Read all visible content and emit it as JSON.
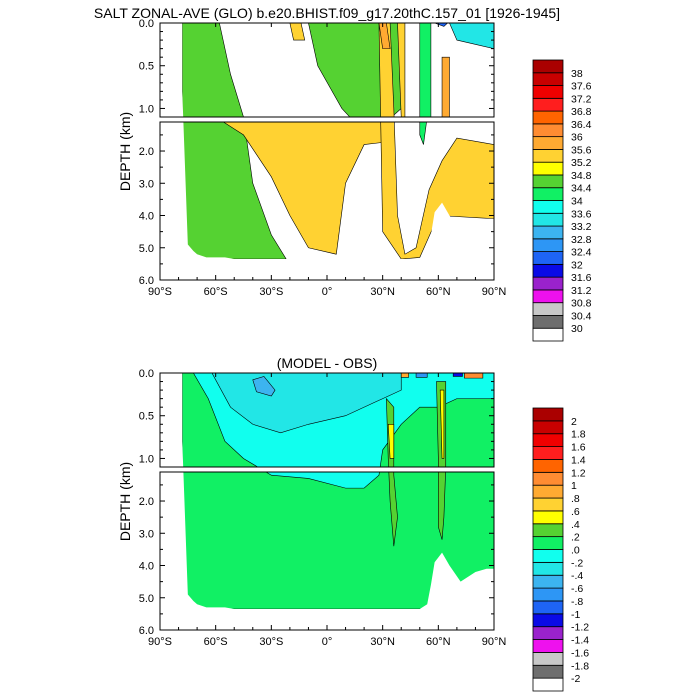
{
  "chart_data": [
    {
      "type": "heatmap",
      "title": "SALT ZONAL-AVE (GLO) b.e20.BHIST.f09_g17.20thC.157_01 [1926-1945]",
      "ylabel": "DEPTH (km)",
      "xlim": [
        -90,
        90
      ],
      "ylim_upper": [
        0,
        1.1
      ],
      "ylim_lower": [
        1.1,
        6.0
      ],
      "x_ticks": [
        "90°S",
        "60°S",
        "30°S",
        "0°",
        "30°N",
        "60°N",
        "90°N"
      ],
      "y_ticks_upper": [
        "0.0",
        "0.5",
        "1.0"
      ],
      "y_ticks_lower": [
        "2.0",
        "3.0",
        "4.0",
        "5.0",
        "6.0"
      ],
      "colorbar_labels": [
        "30",
        "30.4",
        "30.8",
        "31.2",
        "31.6",
        "32",
        "32.4",
        "32.8",
        "33.2",
        "33.6",
        "34",
        "34.4",
        "34.8",
        "35.2",
        "35.6",
        "36",
        "36.4",
        "36.8",
        "37.2",
        "37.6",
        "38"
      ],
      "colorbar_colors": [
        "#ffffff",
        "#6e6e6e",
        "#c8c8c8",
        "#ee11ee",
        "#9a22cc",
        "#0a0ae6",
        "#1e64f5",
        "#2d96f5",
        "#3cb4f0",
        "#22e6e6",
        "#11ffee",
        "#11f064",
        "#55d232",
        "#ffff00",
        "#ffd232",
        "#ffaa32",
        "#ff8c32",
        "#ff6400",
        "#ff1e1e",
        "#f00000",
        "#c80000",
        "#aa0000"
      ],
      "bottom_depth_km": [
        [
          -78,
          0.8
        ],
        [
          -75,
          4.9
        ],
        [
          -72,
          5.1
        ],
        [
          -70,
          5.2
        ],
        [
          -65,
          5.3
        ],
        [
          -60,
          5.3
        ],
        [
          -55,
          5.3
        ],
        [
          -50,
          5.35
        ],
        [
          -40,
          5.35
        ],
        [
          -20,
          5.35
        ],
        [
          0,
          5.35
        ],
        [
          20,
          5.35
        ],
        [
          40,
          5.35
        ],
        [
          50,
          5.35
        ],
        [
          54,
          5.2
        ],
        [
          56,
          4.6
        ],
        [
          58,
          3.9
        ],
        [
          62,
          3.6
        ],
        [
          66,
          4.0
        ],
        [
          72,
          4.5
        ],
        [
          80,
          4.2
        ],
        [
          86,
          4.1
        ],
        [
          90,
          4.1
        ]
      ],
      "regions": [
        {
          "value": 34.6,
          "points": [
            [
              -78,
              0
            ],
            [
              -58,
              0
            ],
            [
              -52,
              0.6
            ],
            [
              -45,
              1.1
            ],
            [
              -40,
              3.0
            ],
            [
              -30,
              4.6
            ],
            [
              -22,
              5.35
            ],
            [
              -78,
              5.35
            ]
          ]
        },
        {
          "value": 34.6,
          "points": [
            [
              -28,
              0
            ],
            [
              -10,
              0
            ],
            [
              -5,
              0.5
            ],
            [
              8,
              1.0
            ],
            [
              18,
              1.3
            ],
            [
              28,
              1.3
            ],
            [
              40,
              1.0
            ],
            [
              40,
              0
            ],
            [
              -28,
              0
            ]
          ]
        },
        {
          "value": 35.4,
          "points": [
            [
              -60,
              1.1
            ],
            [
              -45,
              1.5
            ],
            [
              -30,
              2.8
            ],
            [
              -20,
              4.0
            ],
            [
              -10,
              5.0
            ],
            [
              5,
              5.2
            ],
            [
              10,
              3.0
            ],
            [
              20,
              1.8
            ],
            [
              35,
              1.7
            ],
            [
              36,
              1.1
            ]
          ]
        },
        {
          "value": 35.4,
          "points": [
            [
              28,
              0
            ],
            [
              34,
              0
            ],
            [
              36,
              1.0
            ],
            [
              38,
              4.0
            ],
            [
              42,
              5.2
            ],
            [
              48,
              5.0
            ],
            [
              55,
              3.2
            ],
            [
              62,
              2.3
            ],
            [
              70,
              1.6
            ],
            [
              80,
              1.7
            ],
            [
              90,
              1.8
            ],
            [
              90,
              4.1
            ],
            [
              60,
              4.0
            ],
            [
              50,
              5.3
            ],
            [
              40,
              5.35
            ],
            [
              30,
              4.5
            ],
            [
              28,
              0
            ]
          ]
        },
        {
          "value": 35.4,
          "points": [
            [
              -20,
              0
            ],
            [
              -14,
              0
            ],
            [
              -12,
              0.2
            ],
            [
              -18,
              0.2
            ]
          ]
        },
        {
          "value": 35.8,
          "points": [
            [
              28,
              0
            ],
            [
              32,
              0
            ],
            [
              34,
              0.3
            ],
            [
              30,
              0.3
            ]
          ]
        },
        {
          "value": 34.0,
          "points": [
            [
              50,
              0
            ],
            [
              56,
              0
            ],
            [
              56,
              1.1
            ],
            [
              54,
              1.1
            ],
            [
              52,
              1.8
            ],
            [
              50,
              1.5
            ]
          ]
        },
        {
          "value": 35.8,
          "points": [
            [
              62,
              0.4
            ],
            [
              66,
              0.4
            ],
            [
              66,
              1.1
            ],
            [
              64,
              1.1
            ],
            [
              62,
              1.1
            ]
          ]
        },
        {
          "value": 35.4,
          "points": [
            [
              38,
              0
            ],
            [
              42,
              0
            ],
            [
              42,
              1.1
            ],
            [
              40,
              1.1
            ]
          ]
        },
        {
          "value": 33.4,
          "points": [
            [
              66,
              0
            ],
            [
              90,
              0
            ],
            [
              90,
              0.3
            ],
            [
              70,
              0.2
            ]
          ]
        },
        {
          "value": 32.0,
          "points": [
            [
              58,
              0
            ],
            [
              65,
              0
            ],
            [
              63,
              0.04
            ]
          ]
        }
      ]
    },
    {
      "type": "heatmap",
      "title": "(MODEL - OBS)",
      "ylabel": "DEPTH (km)",
      "xlim": [
        -90,
        90
      ],
      "ylim_upper": [
        0,
        1.1
      ],
      "ylim_lower": [
        1.1,
        6.0
      ],
      "x_ticks": [
        "90°S",
        "60°S",
        "30°S",
        "0°",
        "30°N",
        "60°N",
        "90°N"
      ],
      "y_ticks_upper": [
        "0.0",
        "0.5",
        "1.0"
      ],
      "y_ticks_lower": [
        "2.0",
        "3.0",
        "4.0",
        "5.0",
        "6.0"
      ],
      "colorbar_labels": [
        "-2",
        "-1.8",
        "-1.6",
        "-1.4",
        "-1.2",
        "-1",
        "-.8",
        "-.6",
        "-.4",
        "-.2",
        ".0",
        ".2",
        ".4",
        ".6",
        ".8",
        "1",
        "1.2",
        "1.4",
        "1.6",
        "1.8",
        "2"
      ],
      "colorbar_colors": [
        "#ffffff",
        "#6e6e6e",
        "#c8c8c8",
        "#ee11ee",
        "#9a22cc",
        "#0a0ae6",
        "#1e64f5",
        "#2d96f5",
        "#3cb4f0",
        "#22e6e6",
        "#11ffee",
        "#11f064",
        "#55d232",
        "#ffff00",
        "#ffd232",
        "#ffaa32",
        "#ff8c32",
        "#ff6400",
        "#ff1e1e",
        "#f00000",
        "#c80000",
        "#aa0000"
      ],
      "bottom_depth_km": [
        [
          -78,
          0.8
        ],
        [
          -75,
          4.9
        ],
        [
          -72,
          5.1
        ],
        [
          -70,
          5.2
        ],
        [
          -65,
          5.3
        ],
        [
          -60,
          5.3
        ],
        [
          -55,
          5.3
        ],
        [
          -50,
          5.35
        ],
        [
          -40,
          5.35
        ],
        [
          -20,
          5.35
        ],
        [
          0,
          5.35
        ],
        [
          20,
          5.35
        ],
        [
          40,
          5.35
        ],
        [
          50,
          5.35
        ],
        [
          54,
          5.2
        ],
        [
          56,
          4.6
        ],
        [
          58,
          3.9
        ],
        [
          62,
          3.6
        ],
        [
          66,
          4.0
        ],
        [
          72,
          4.5
        ],
        [
          80,
          4.2
        ],
        [
          86,
          4.1
        ],
        [
          90,
          4.1
        ]
      ],
      "regions": [
        {
          "value": 0.1,
          "points": [
            [
              -78,
              0
            ],
            [
              -78,
              5.35
            ],
            [
              90,
              5.35
            ],
            [
              90,
              0
            ]
          ]
        },
        {
          "value": -0.1,
          "points": [
            [
              -72,
              0
            ],
            [
              -64,
              0.3
            ],
            [
              -55,
              0.8
            ],
            [
              -45,
              1.0
            ],
            [
              -30,
              1.2
            ],
            [
              -10,
              1.3
            ],
            [
              10,
              1.6
            ],
            [
              20,
              1.6
            ],
            [
              28,
              1.2
            ],
            [
              30,
              0.9
            ],
            [
              40,
              0.6
            ],
            [
              50,
              0.4
            ],
            [
              60,
              0.4
            ],
            [
              70,
              0.3
            ],
            [
              90,
              0.3
            ],
            [
              90,
              0
            ]
          ]
        },
        {
          "value": -0.3,
          "points": [
            [
              -62,
              0
            ],
            [
              -52,
              0.4
            ],
            [
              -40,
              0.6
            ],
            [
              -25,
              0.7
            ],
            [
              -10,
              0.6
            ],
            [
              10,
              0.5
            ],
            [
              25,
              0.35
            ],
            [
              40,
              0.2
            ],
            [
              40,
              0
            ]
          ]
        },
        {
          "value": -0.5,
          "points": [
            [
              -40,
              0.08
            ],
            [
              -34,
              0.04
            ],
            [
              -28,
              0.2
            ],
            [
              -30,
              0.27
            ],
            [
              -38,
              0.22
            ]
          ]
        },
        {
          "value": 0.3,
          "points": [
            [
              32,
              0.3
            ],
            [
              36,
              0.4
            ],
            [
              36,
              1.2
            ],
            [
              38,
              2.5
            ],
            [
              36,
              3.4
            ],
            [
              34,
              2.0
            ],
            [
              33,
              1.0
            ]
          ]
        },
        {
          "value": 0.5,
          "points": [
            [
              33,
              0.6
            ],
            [
              36,
              0.6
            ],
            [
              36,
              1.0
            ],
            [
              34,
              1.0
            ]
          ]
        },
        {
          "value": 0.3,
          "points": [
            [
              59,
              0.1
            ],
            [
              64,
              0.1
            ],
            [
              64,
              1.1
            ],
            [
              63,
              2.5
            ],
            [
              62,
              3.2
            ],
            [
              60,
              2.8
            ],
            [
              60,
              1.0
            ]
          ]
        },
        {
          "value": 0.5,
          "points": [
            [
              61,
              0.2
            ],
            [
              63,
              0.2
            ],
            [
              63,
              1.0
            ],
            [
              62,
              1.0
            ]
          ]
        },
        {
          "value": 0.9,
          "points": [
            [
              40,
              0
            ],
            [
              44,
              0
            ],
            [
              44,
              0.05
            ],
            [
              40,
              0.05
            ]
          ]
        },
        {
          "value": -0.7,
          "points": [
            [
              48,
              0
            ],
            [
              54,
              0
            ],
            [
              54,
              0.05
            ],
            [
              48,
              0.05
            ]
          ]
        },
        {
          "value": 1.1,
          "points": [
            [
              74,
              0
            ],
            [
              84,
              0
            ],
            [
              84,
              0.06
            ],
            [
              74,
              0.06
            ]
          ]
        },
        {
          "value": -1.1,
          "points": [
            [
              68,
              0
            ],
            [
              73,
              0
            ],
            [
              73,
              0.04
            ],
            [
              68,
              0.04
            ]
          ]
        }
      ]
    }
  ]
}
